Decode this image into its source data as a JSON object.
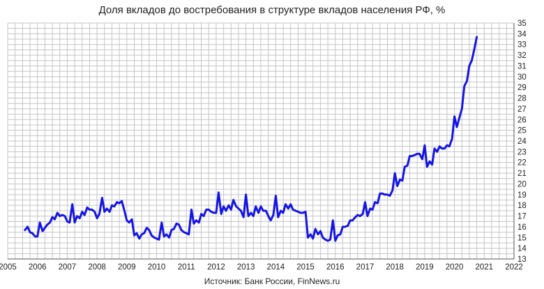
{
  "chart_data": {
    "type": "line",
    "title": "Доля вкладов до востребования в структуре вкладов населения РФ, %",
    "source_note": "Источник: Банк России, FinNews.ru",
    "xlabel": "",
    "ylabel": "",
    "xlim": [
      2005,
      2022
    ],
    "ylim": [
      13,
      35
    ],
    "x_ticks": [
      2005,
      2006,
      2007,
      2008,
      2009,
      2010,
      2011,
      2012,
      2013,
      2014,
      2015,
      2016,
      2017,
      2018,
      2019,
      2020,
      2021,
      2022
    ],
    "y_ticks": [
      13,
      14,
      15,
      16,
      17,
      18,
      19,
      20,
      21,
      22,
      23,
      24,
      25,
      26,
      27,
      28,
      29,
      30,
      31,
      32,
      33,
      34,
      35
    ],
    "grid": true,
    "y_axis_side": "right",
    "legend": "none",
    "colors": {
      "series": "#1414e6",
      "grid": "#c4c4c4",
      "axis": "#555555"
    },
    "series": [
      {
        "values": [
          [
            2005.58,
            15.7
          ],
          [
            2005.67,
            16.0
          ],
          [
            2005.75,
            15.5
          ],
          [
            2005.83,
            15.4
          ],
          [
            2005.92,
            15.1
          ],
          [
            2006.0,
            15.1
          ],
          [
            2006.08,
            16.4
          ],
          [
            2006.17,
            15.6
          ],
          [
            2006.25,
            15.9
          ],
          [
            2006.33,
            16.2
          ],
          [
            2006.42,
            16.4
          ],
          [
            2006.5,
            16.9
          ],
          [
            2006.58,
            16.7
          ],
          [
            2006.67,
            17.3
          ],
          [
            2006.75,
            17.0
          ],
          [
            2006.83,
            17.1
          ],
          [
            2006.92,
            17.0
          ],
          [
            2007.0,
            16.5
          ],
          [
            2007.08,
            16.4
          ],
          [
            2007.17,
            18.1
          ],
          [
            2007.25,
            16.4
          ],
          [
            2007.33,
            17.0
          ],
          [
            2007.42,
            16.8
          ],
          [
            2007.5,
            17.4
          ],
          [
            2007.58,
            17.1
          ],
          [
            2007.67,
            17.8
          ],
          [
            2007.75,
            17.6
          ],
          [
            2007.83,
            17.6
          ],
          [
            2007.92,
            17.4
          ],
          [
            2008.0,
            16.8
          ],
          [
            2008.08,
            17.2
          ],
          [
            2008.17,
            18.7
          ],
          [
            2008.25,
            17.4
          ],
          [
            2008.33,
            17.7
          ],
          [
            2008.42,
            17.4
          ],
          [
            2008.5,
            18.0
          ],
          [
            2008.58,
            17.9
          ],
          [
            2008.67,
            18.3
          ],
          [
            2008.75,
            18.2
          ],
          [
            2008.83,
            18.4
          ],
          [
            2008.92,
            17.5
          ],
          [
            2009.0,
            16.6
          ],
          [
            2009.08,
            16.4
          ],
          [
            2009.17,
            16.7
          ],
          [
            2009.25,
            15.2
          ],
          [
            2009.33,
            15.4
          ],
          [
            2009.42,
            14.9
          ],
          [
            2009.5,
            15.3
          ],
          [
            2009.58,
            15.4
          ],
          [
            2009.67,
            15.9
          ],
          [
            2009.75,
            15.7
          ],
          [
            2009.83,
            15.2
          ],
          [
            2009.92,
            15.0
          ],
          [
            2010.0,
            14.9
          ],
          [
            2010.08,
            14.8
          ],
          [
            2010.17,
            16.4
          ],
          [
            2010.25,
            15.1
          ],
          [
            2010.33,
            15.3
          ],
          [
            2010.42,
            15.0
          ],
          [
            2010.5,
            15.7
          ],
          [
            2010.58,
            15.8
          ],
          [
            2010.67,
            16.3
          ],
          [
            2010.75,
            16.2
          ],
          [
            2010.83,
            15.7
          ],
          [
            2010.92,
            15.5
          ],
          [
            2011.0,
            15.4
          ],
          [
            2011.08,
            15.3
          ],
          [
            2011.17,
            17.6
          ],
          [
            2011.25,
            16.3
          ],
          [
            2011.33,
            16.6
          ],
          [
            2011.42,
            16.4
          ],
          [
            2011.5,
            17.2
          ],
          [
            2011.58,
            17.0
          ],
          [
            2011.67,
            17.6
          ],
          [
            2011.75,
            17.6
          ],
          [
            2011.83,
            17.4
          ],
          [
            2011.92,
            17.3
          ],
          [
            2012.0,
            17.3
          ],
          [
            2012.08,
            19.2
          ],
          [
            2012.17,
            17.2
          ],
          [
            2012.25,
            17.9
          ],
          [
            2012.33,
            17.5
          ],
          [
            2012.42,
            18.0
          ],
          [
            2012.5,
            17.6
          ],
          [
            2012.58,
            18.5
          ],
          [
            2012.67,
            17.9
          ],
          [
            2012.75,
            17.7
          ],
          [
            2012.83,
            17.5
          ],
          [
            2012.92,
            16.9
          ],
          [
            2013.0,
            19.0
          ],
          [
            2013.08,
            17.0
          ],
          [
            2013.17,
            17.3
          ],
          [
            2013.25,
            17.0
          ],
          [
            2013.33,
            17.9
          ],
          [
            2013.42,
            17.3
          ],
          [
            2013.5,
            17.9
          ],
          [
            2013.58,
            17.5
          ],
          [
            2013.67,
            17.5
          ],
          [
            2013.75,
            17.0
          ],
          [
            2013.83,
            16.6
          ],
          [
            2013.92,
            17.1
          ],
          [
            2014.0,
            18.9
          ],
          [
            2014.08,
            16.9
          ],
          [
            2014.17,
            17.5
          ],
          [
            2014.25,
            17.3
          ],
          [
            2014.33,
            18.1
          ],
          [
            2014.42,
            17.7
          ],
          [
            2014.5,
            18.1
          ],
          [
            2014.58,
            17.6
          ],
          [
            2014.67,
            17.5
          ],
          [
            2014.75,
            17.4
          ],
          [
            2014.83,
            17.3
          ],
          [
            2014.92,
            17.3
          ],
          [
            2015.0,
            17.4
          ],
          [
            2015.08,
            15.0
          ],
          [
            2015.17,
            15.3
          ],
          [
            2015.25,
            14.9
          ],
          [
            2015.33,
            15.8
          ],
          [
            2015.42,
            15.3
          ],
          [
            2015.5,
            15.6
          ],
          [
            2015.58,
            15.0
          ],
          [
            2015.67,
            14.8
          ],
          [
            2015.75,
            14.7
          ],
          [
            2015.83,
            14.8
          ],
          [
            2015.92,
            16.6
          ],
          [
            2016.0,
            14.7
          ],
          [
            2016.08,
            15.2
          ],
          [
            2016.17,
            15.3
          ],
          [
            2016.25,
            16.0
          ],
          [
            2016.33,
            16.0
          ],
          [
            2016.42,
            16.1
          ],
          [
            2016.5,
            16.6
          ],
          [
            2016.58,
            16.6
          ],
          [
            2016.67,
            16.9
          ],
          [
            2016.75,
            17.1
          ],
          [
            2016.83,
            17.0
          ],
          [
            2016.92,
            17.2
          ],
          [
            2017.0,
            18.3
          ],
          [
            2017.08,
            17.0
          ],
          [
            2017.17,
            17.7
          ],
          [
            2017.25,
            17.6
          ],
          [
            2017.33,
            18.3
          ],
          [
            2017.42,
            18.2
          ],
          [
            2017.5,
            19.1
          ],
          [
            2017.58,
            19.1
          ],
          [
            2017.67,
            19.0
          ],
          [
            2017.75,
            19.0
          ],
          [
            2017.83,
            18.9
          ],
          [
            2017.92,
            19.4
          ],
          [
            2018.0,
            21.0
          ],
          [
            2018.08,
            19.8
          ],
          [
            2018.17,
            20.4
          ],
          [
            2018.25,
            20.3
          ],
          [
            2018.33,
            21.6
          ],
          [
            2018.42,
            21.7
          ],
          [
            2018.5,
            22.6
          ],
          [
            2018.58,
            22.6
          ],
          [
            2018.67,
            22.7
          ],
          [
            2018.75,
            22.8
          ],
          [
            2018.83,
            22.8
          ],
          [
            2018.92,
            22.3
          ],
          [
            2019.0,
            23.6
          ],
          [
            2019.08,
            21.6
          ],
          [
            2019.17,
            22.1
          ],
          [
            2019.25,
            21.8
          ],
          [
            2019.33,
            23.3
          ],
          [
            2019.42,
            23.0
          ],
          [
            2019.5,
            23.5
          ],
          [
            2019.58,
            23.3
          ],
          [
            2019.67,
            23.3
          ],
          [
            2019.75,
            23.6
          ],
          [
            2019.83,
            23.5
          ],
          [
            2019.92,
            24.2
          ],
          [
            2020.0,
            26.3
          ],
          [
            2020.08,
            25.3
          ],
          [
            2020.17,
            26.2
          ],
          [
            2020.25,
            27.0
          ],
          [
            2020.33,
            29.1
          ],
          [
            2020.42,
            29.6
          ],
          [
            2020.5,
            31.0
          ],
          [
            2020.58,
            31.5
          ],
          [
            2020.67,
            32.6
          ],
          [
            2020.75,
            33.7
          ]
        ]
      }
    ]
  }
}
